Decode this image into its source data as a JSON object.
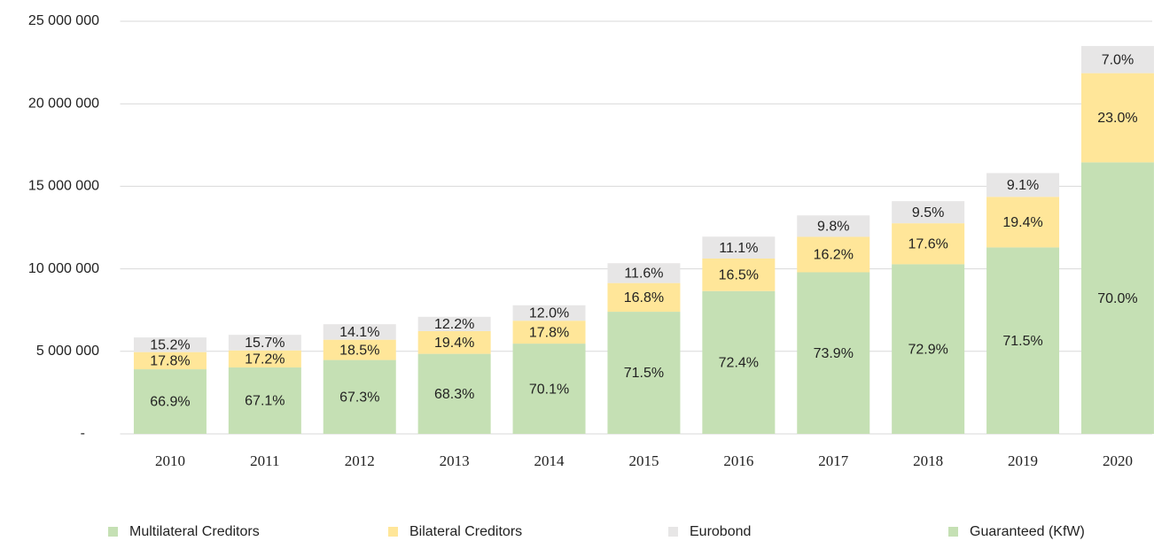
{
  "chart_data": {
    "type": "bar",
    "stacked": true,
    "categories": [
      "2010",
      "2011",
      "2012",
      "2013",
      "2014",
      "2015",
      "2016",
      "2017",
      "2018",
      "2019",
      "2020"
    ],
    "totals": [
      5850000,
      6000000,
      6650000,
      7100000,
      7800000,
      10350000,
      11950000,
      13250000,
      14100000,
      15800000,
      23500000
    ],
    "series": [
      {
        "name": "Multilateral Creditors",
        "color": "#c5e0b4",
        "values": [
          66.9,
          67.1,
          67.3,
          68.3,
          70.1,
          71.5,
          72.4,
          73.9,
          72.9,
          71.5,
          70.0
        ],
        "value_labels": [
          "66.9%",
          "67.1%",
          "67.3%",
          "68.3%",
          "70.1%",
          "71.5%",
          "72.4%",
          "73.9%",
          "72.9%",
          "71.5%",
          "70.0%"
        ]
      },
      {
        "name": "Bilateral Creditors",
        "color": "#ffe699",
        "values": [
          17.8,
          17.2,
          18.5,
          19.4,
          17.8,
          16.8,
          16.5,
          16.2,
          17.6,
          19.4,
          23.0
        ],
        "value_labels": [
          "17.8%",
          "17.2%",
          "18.5%",
          "19.4%",
          "17.8%",
          "16.8%",
          "16.5%",
          "16.2%",
          "17.6%",
          "19.4%",
          "23.0%"
        ]
      },
      {
        "name": "Eurobond",
        "color": "#e7e6e6",
        "values": [
          15.2,
          15.7,
          14.1,
          12.2,
          12.0,
          11.6,
          11.1,
          9.8,
          9.5,
          9.1,
          7.0
        ],
        "value_labels": [
          "15.2%",
          "15.7%",
          "14.1%",
          "12.2%",
          "12.0%",
          "11.6%",
          "11.1%",
          "9.8%",
          "9.5%",
          "9.1%",
          "7.0%"
        ]
      },
      {
        "name": "Guaranteed (KfW)",
        "color": "#c5e0b4",
        "values": [
          null,
          null,
          null,
          null,
          null,
          null,
          null,
          null,
          null,
          null,
          null
        ]
      }
    ],
    "ylim": [
      0,
      25000000
    ],
    "yticks": [
      {
        "value": 0,
        "label": "-"
      },
      {
        "value": 5000000,
        "label": "5 000 000"
      },
      {
        "value": 10000000,
        "label": "10 000 000"
      },
      {
        "value": 15000000,
        "label": "15 000 000"
      },
      {
        "value": 20000000,
        "label": "20 000 000"
      },
      {
        "value": 25000000,
        "label": "25 000 000"
      }
    ],
    "grid": true,
    "legend": "bottom"
  }
}
